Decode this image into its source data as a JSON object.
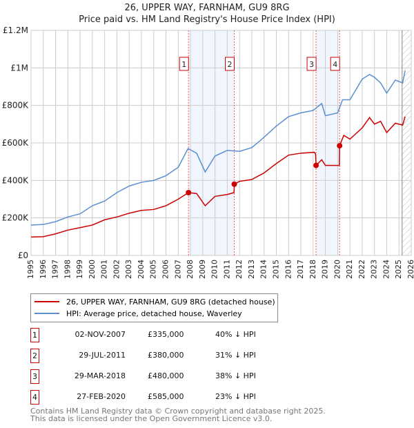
{
  "chart_data": {
    "type": "line",
    "title": "26, UPPER WAY, FARNHAM, GU9 8RG",
    "subtitle": "Price paid vs. HM Land Registry's House Price Index (HPI)",
    "xlim": [
      1995,
      2026
    ],
    "ylim": [
      0,
      1200000
    ],
    "x_ticks": [
      "1995",
      "1996",
      "1997",
      "1998",
      "1999",
      "2000",
      "2001",
      "2002",
      "2003",
      "2004",
      "2005",
      "2006",
      "2007",
      "2008",
      "2009",
      "2010",
      "2011",
      "2012",
      "2013",
      "2014",
      "2015",
      "2016",
      "2017",
      "2018",
      "2019",
      "2020",
      "2021",
      "2022",
      "2023",
      "2024",
      "2025",
      "2026"
    ],
    "y_ticks": [
      {
        "v": 0,
        "label": "£0"
      },
      {
        "v": 200000,
        "label": "£200K"
      },
      {
        "v": 400000,
        "label": "£400K"
      },
      {
        "v": 600000,
        "label": "£600K"
      },
      {
        "v": 800000,
        "label": "£800K"
      },
      {
        "v": 1000000,
        "label": "£1M"
      },
      {
        "v": 1200000,
        "label": "£1.2M"
      }
    ],
    "grid": true,
    "series": [
      {
        "name": "26, UPPER WAY, FARNHAM, GU9 8RG (detached house)",
        "color": "#cc0000",
        "x": [
          1995,
          1996,
          1997,
          1998,
          1999,
          2000,
          2001,
          2002,
          2003,
          2004,
          2005,
          2006,
          2007,
          2007.84,
          2008.5,
          2009.2,
          2010,
          2011,
          2011.55,
          2011.58,
          2012,
          2013,
          2014,
          2015,
          2016,
          2017,
          2018.1,
          2018.2,
          2018.24,
          2018.7,
          2019,
          2020.1,
          2020.14,
          2020.16,
          2020.5,
          2021,
          2022,
          2022.6,
          2023,
          2023.5,
          2024,
          2024.7,
          2025.3,
          2025.5
        ],
        "y": [
          98000,
          100000,
          115000,
          135000,
          148000,
          162000,
          190000,
          205000,
          225000,
          240000,
          245000,
          265000,
          300000,
          335000,
          330000,
          265000,
          315000,
          325000,
          335000,
          380000,
          395000,
          405000,
          440000,
          490000,
          535000,
          545000,
          550000,
          540000,
          480000,
          510000,
          480000,
          480000,
          480000,
          585000,
          640000,
          620000,
          680000,
          735000,
          700000,
          715000,
          655000,
          705000,
          695000,
          740000
        ]
      },
      {
        "name": "HPI: Average price, detached house, Waverley",
        "color": "#5b8fd0",
        "x": [
          1995,
          1996,
          1997,
          1998,
          1999,
          2000,
          2001,
          2002,
          2003,
          2004,
          2005,
          2006,
          2007,
          2007.8,
          2008.5,
          2009.2,
          2010,
          2011,
          2012,
          2013,
          2014,
          2015,
          2016,
          2017,
          2018,
          2018.7,
          2019,
          2020,
          2020.4,
          2021,
          2022,
          2022.6,
          2023,
          2023.5,
          2024,
          2024.7,
          2025.3,
          2025.5
        ],
        "y": [
          162000,
          165000,
          180000,
          205000,
          222000,
          265000,
          290000,
          335000,
          370000,
          390000,
          400000,
          425000,
          470000,
          570000,
          545000,
          445000,
          530000,
          560000,
          555000,
          575000,
          630000,
          690000,
          740000,
          760000,
          773000,
          810000,
          745000,
          760000,
          830000,
          830000,
          940000,
          965000,
          950000,
          920000,
          865000,
          935000,
          920000,
          985000
        ]
      }
    ],
    "sales": [
      {
        "n": "1",
        "x": 2007.84,
        "y": 335000,
        "date": "02-NOV-2007",
        "price": "£335,000",
        "hpi": "40% ↓ HPI"
      },
      {
        "n": "2",
        "x": 2011.57,
        "y": 380000,
        "date": "29-JUL-2011",
        "price": "£380,000",
        "hpi": "31% ↓ HPI"
      },
      {
        "n": "3",
        "x": 2018.24,
        "y": 480000,
        "date": "29-MAR-2018",
        "price": "£480,000",
        "hpi": "38% ↓ HPI"
      },
      {
        "n": "4",
        "x": 2020.16,
        "y": 585000,
        "date": "27-FEB-2020",
        "price": "£585,000",
        "hpi": "23% ↓ HPI"
      }
    ],
    "shaded_ranges": [
      [
        2007.84,
        2011.57
      ],
      [
        2018.24,
        2020.16
      ]
    ],
    "hatched_from": 2025.2,
    "legend_position": "below"
  },
  "footer": {
    "line1": "Contains HM Land Registry data © Crown copyright and database right 2025.",
    "line2": "This data is licensed under the Open Government Licence v3.0."
  }
}
